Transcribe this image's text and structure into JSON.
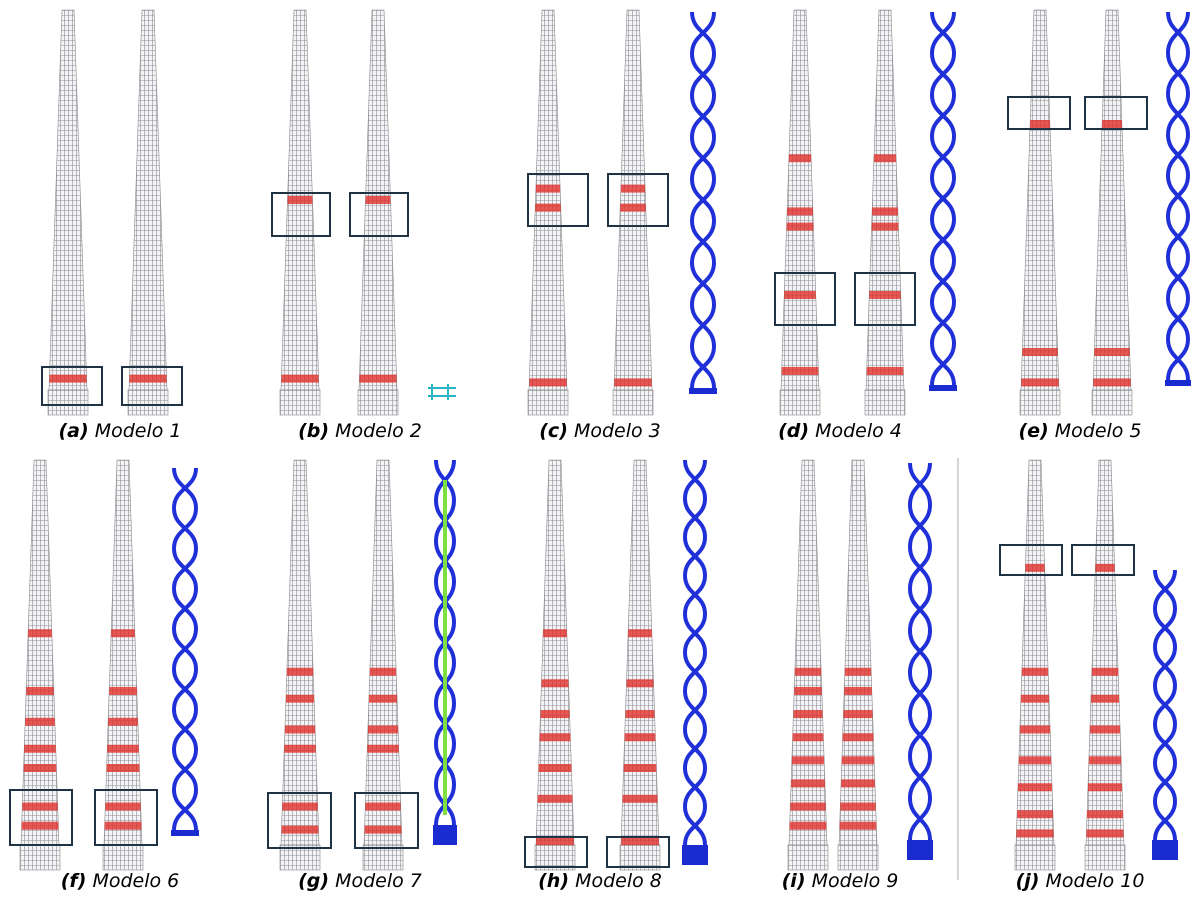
{
  "panels": [
    {
      "letter": "(a)",
      "caption": "Modelo 1"
    },
    {
      "letter": "(b)",
      "caption": "Modelo 2"
    },
    {
      "letter": "(c)",
      "caption": "Modelo 3"
    },
    {
      "letter": "(d)",
      "caption": "Modelo 4"
    },
    {
      "letter": "(e)",
      "caption": "Modelo 5"
    },
    {
      "letter": "(f)",
      "caption": "Modelo 6"
    },
    {
      "letter": "(g)",
      "caption": "Modelo 7"
    },
    {
      "letter": "(h)",
      "caption": "Modelo 8"
    },
    {
      "letter": "(i)",
      "caption": "Modelo 9"
    },
    {
      "letter": "(j)",
      "caption": "Modelo 10"
    }
  ]
}
